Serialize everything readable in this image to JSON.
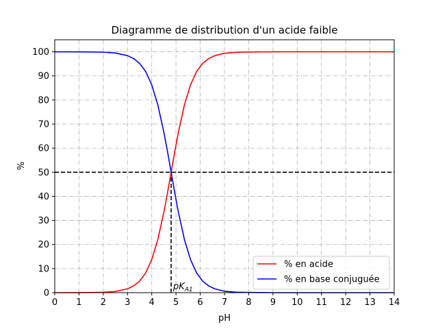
{
  "chart_data": {
    "type": "line",
    "title": "Diagramme de distribution d'un acide faible",
    "xlabel": "pH",
    "ylabel": "%",
    "xlim": [
      0,
      14
    ],
    "ylim": [
      0,
      105
    ],
    "xticks": [
      0,
      1,
      2,
      3,
      4,
      5,
      6,
      7,
      8,
      9,
      10,
      11,
      12,
      13,
      14
    ],
    "yticks": [
      0,
      10,
      20,
      30,
      40,
      50,
      60,
      70,
      80,
      90,
      100
    ],
    "grid": true,
    "legend_position": "bottom-right",
    "x": [
      0,
      1,
      2,
      2.5,
      3,
      3.25,
      3.5,
      3.75,
      4,
      4.25,
      4.5,
      4.65,
      4.8,
      4.95,
      5.1,
      5.35,
      5.6,
      5.85,
      6.1,
      6.35,
      6.6,
      7,
      7.5,
      8,
      9,
      10,
      11,
      12,
      13,
      14
    ],
    "series": [
      {
        "name": "% en acide",
        "color": "#ff0000",
        "values": [
          0.0,
          0.02,
          0.16,
          0.5,
          1.6,
          2.8,
          4.8,
          8.2,
          13.7,
          22.0,
          33.4,
          41.4,
          50.0,
          58.6,
          66.6,
          78.0,
          86.3,
          91.8,
          95.2,
          97.2,
          98.4,
          99.4,
          99.8,
          99.9,
          100.0,
          100.0,
          100.0,
          100.0,
          100.0,
          100.0
        ]
      },
      {
        "name": "% en base conjuguée",
        "color": "#0000ff",
        "values": [
          100.0,
          99.98,
          99.84,
          99.5,
          98.4,
          97.2,
          95.2,
          91.8,
          86.3,
          78.0,
          66.6,
          58.6,
          50.0,
          41.4,
          33.4,
          22.0,
          13.7,
          8.2,
          4.8,
          2.8,
          1.6,
          0.6,
          0.2,
          0.1,
          0.0,
          0.0,
          0.0,
          0.0,
          0.0,
          0.0
        ]
      }
    ],
    "reference_lines": {
      "horizontal_y": 50,
      "vertical_x": 4.8
    },
    "annotation": {
      "text": "pK",
      "subscript": "A1",
      "x": 4.8
    }
  }
}
